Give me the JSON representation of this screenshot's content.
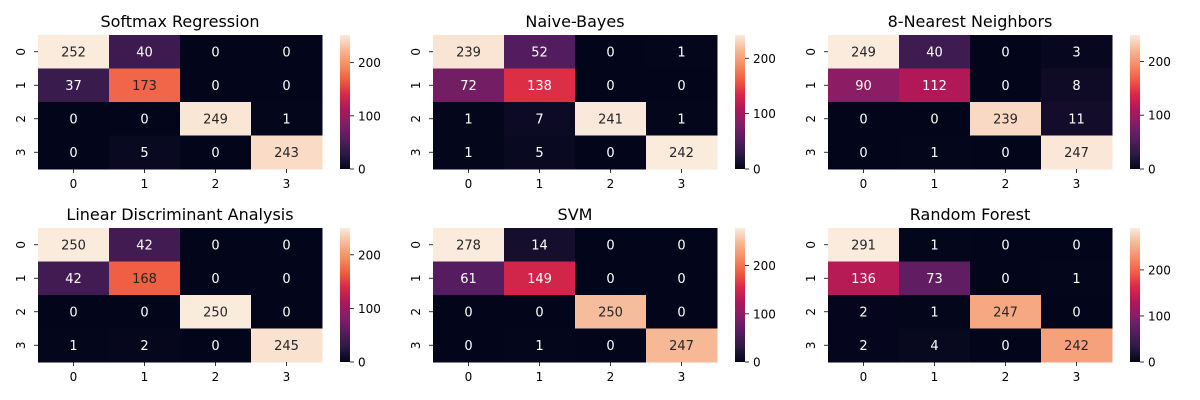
{
  "chart_data": [
    {
      "type": "heatmap",
      "title": "Softmax Regression",
      "x_ticks": [
        "0",
        "1",
        "2",
        "3"
      ],
      "y_ticks": [
        "0",
        "1",
        "2",
        "3"
      ],
      "values": [
        [
          252,
          40,
          0,
          0
        ],
        [
          37,
          173,
          0,
          0
        ],
        [
          0,
          0,
          249,
          1
        ],
        [
          0,
          5,
          0,
          243
        ]
      ],
      "colorbar": {
        "range": [
          0,
          252
        ],
        "ticks": [
          0,
          100,
          200
        ]
      }
    },
    {
      "type": "heatmap",
      "title": "Naive-Bayes",
      "x_ticks": [
        "0",
        "1",
        "2",
        "3"
      ],
      "y_ticks": [
        "0",
        "1",
        "2",
        "3"
      ],
      "values": [
        [
          239,
          52,
          0,
          1
        ],
        [
          72,
          138,
          0,
          0
        ],
        [
          1,
          7,
          241,
          1
        ],
        [
          1,
          5,
          0,
          242
        ]
      ],
      "colorbar": {
        "range": [
          0,
          242
        ],
        "ticks": [
          0,
          100,
          200
        ]
      }
    },
    {
      "type": "heatmap",
      "title": "8-Nearest Neighbors",
      "x_ticks": [
        "0",
        "1",
        "2",
        "3"
      ],
      "y_ticks": [
        "0",
        "1",
        "2",
        "3"
      ],
      "values": [
        [
          249,
          40,
          0,
          3
        ],
        [
          90,
          112,
          0,
          8
        ],
        [
          0,
          0,
          239,
          11
        ],
        [
          0,
          1,
          0,
          247
        ]
      ],
      "colorbar": {
        "range": [
          0,
          249
        ],
        "ticks": [
          0,
          100,
          200
        ]
      }
    },
    {
      "type": "heatmap",
      "title": "Linear Discriminant Analysis",
      "x_ticks": [
        "0",
        "1",
        "2",
        "3"
      ],
      "y_ticks": [
        "0",
        "1",
        "2",
        "3"
      ],
      "values": [
        [
          250,
          42,
          0,
          0
        ],
        [
          42,
          168,
          0,
          0
        ],
        [
          0,
          0,
          250,
          0
        ],
        [
          1,
          2,
          0,
          245
        ]
      ],
      "colorbar": {
        "range": [
          0,
          250
        ],
        "ticks": [
          0,
          100,
          200
        ]
      }
    },
    {
      "type": "heatmap",
      "title": "SVM",
      "x_ticks": [
        "0",
        "1",
        "2",
        "3"
      ],
      "y_ticks": [
        "0",
        "1",
        "2",
        "3"
      ],
      "values": [
        [
          278,
          14,
          0,
          0
        ],
        [
          61,
          149,
          0,
          0
        ],
        [
          0,
          0,
          250,
          0
        ],
        [
          0,
          1,
          0,
          247
        ]
      ],
      "colorbar": {
        "range": [
          0,
          278
        ],
        "ticks": [
          0,
          100,
          200
        ]
      }
    },
    {
      "type": "heatmap",
      "title": "Random Forest",
      "x_ticks": [
        "0",
        "1",
        "2",
        "3"
      ],
      "y_ticks": [
        "0",
        "1",
        "2",
        "3"
      ],
      "values": [
        [
          291,
          1,
          0,
          0
        ],
        [
          136,
          73,
          0,
          1
        ],
        [
          2,
          1,
          247,
          0
        ],
        [
          2,
          4,
          0,
          242
        ]
      ],
      "colorbar": {
        "range": [
          0,
          291
        ],
        "ticks": [
          0,
          100,
          200
        ]
      }
    }
  ],
  "colormap": [
    "#03051a",
    "#2b1a44",
    "#561c60",
    "#811e68",
    "#ae1759",
    "#d92847",
    "#f05c42",
    "#f58d64",
    "#f6b895",
    "#faebdd"
  ]
}
